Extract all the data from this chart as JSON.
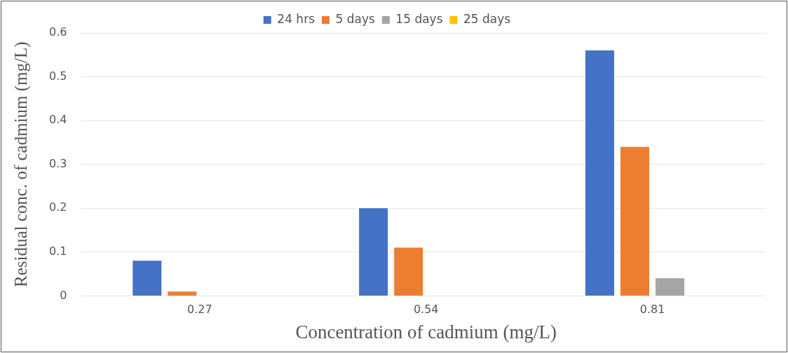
{
  "chart_data": {
    "type": "bar",
    "xlabel": "Concentration of cadmium (mg/L)",
    "ylabel": "Residual conc. of cadmium (mg/L)",
    "categories": [
      "0.27",
      "0.54",
      "0.81"
    ],
    "series": [
      {
        "name": "24 hrs",
        "color": "#4472c4",
        "values": [
          0.08,
          0.2,
          0.56
        ]
      },
      {
        "name": "5 days",
        "color": "#ed7d31",
        "values": [
          0.01,
          0.11,
          0.34
        ]
      },
      {
        "name": "15 days",
        "color": "#a5a5a5",
        "values": [
          0,
          0,
          0.04
        ]
      },
      {
        "name": "25 days",
        "color": "#ffc000",
        "values": [
          0,
          0,
          0
        ]
      }
    ],
    "ylim": [
      0,
      0.6
    ],
    "yticks": [
      0,
      0.1,
      0.2,
      0.3,
      0.4,
      0.5,
      0.6
    ],
    "grid": "y",
    "legend": "top"
  }
}
